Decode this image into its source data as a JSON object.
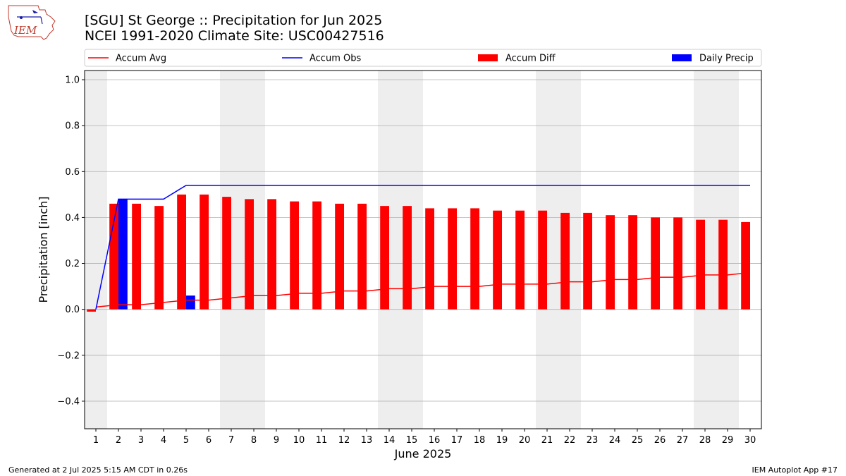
{
  "logo": {
    "text": "IEM"
  },
  "header": {
    "title": "[SGU] St George :: Precipitation for Jun 2025",
    "subtitle": "NCEI 1991-2020 Climate Site: USC00427516"
  },
  "footer": {
    "generated": "Generated at 2 Jul 2025 5:15 AM CDT in 0.26s",
    "app": "IEM Autoplot App #17"
  },
  "colors": {
    "avg": "#ff0000",
    "obs": "#0000ff",
    "diff": "#ff0000",
    "daily": "#0000ff",
    "weekend_shade": "#eeeeee",
    "grid": "#b0b0b0"
  },
  "chart_data": {
    "type": "bar",
    "xlabel": "June 2025",
    "ylabel": "Precipitation [inch]",
    "ylim": [
      -0.52,
      1.04
    ],
    "yticks": [
      -0.4,
      -0.2,
      0.0,
      0.2,
      0.4,
      0.6,
      0.8,
      1.0
    ],
    "ytick_labels": [
      "−0.4",
      "−0.2",
      "0.0",
      "0.2",
      "0.4",
      "0.6",
      "0.8",
      "1.0"
    ],
    "grid": "horizontal",
    "legend_placement": "top",
    "legend": [
      "Accum Avg",
      "Accum Obs",
      "Accum Diff",
      "Daily Precip"
    ],
    "days": [
      1,
      2,
      3,
      4,
      5,
      6,
      7,
      8,
      9,
      10,
      11,
      12,
      13,
      14,
      15,
      16,
      17,
      18,
      19,
      20,
      21,
      22,
      23,
      24,
      25,
      26,
      27,
      28,
      29,
      30
    ],
    "weekend_days": [
      1,
      7,
      8,
      14,
      15,
      21,
      22,
      28,
      29
    ],
    "series": [
      {
        "name": "Accum Avg",
        "kind": "line",
        "values": [
          0.01,
          0.02,
          0.02,
          0.03,
          0.04,
          0.04,
          0.05,
          0.06,
          0.06,
          0.07,
          0.07,
          0.08,
          0.08,
          0.09,
          0.09,
          0.1,
          0.1,
          0.1,
          0.11,
          0.11,
          0.11,
          0.12,
          0.12,
          0.13,
          0.13,
          0.14,
          0.14,
          0.15,
          0.15,
          0.16
        ]
      },
      {
        "name": "Accum Obs",
        "kind": "line",
        "values": [
          0.0,
          0.48,
          0.48,
          0.48,
          0.54,
          0.54,
          0.54,
          0.54,
          0.54,
          0.54,
          0.54,
          0.54,
          0.54,
          0.54,
          0.54,
          0.54,
          0.54,
          0.54,
          0.54,
          0.54,
          0.54,
          0.54,
          0.54,
          0.54,
          0.54,
          0.54,
          0.54,
          0.54,
          0.54,
          0.54
        ]
      },
      {
        "name": "Accum Diff",
        "kind": "bar",
        "values": [
          -0.01,
          0.46,
          0.46,
          0.45,
          0.5,
          0.5,
          0.49,
          0.48,
          0.48,
          0.47,
          0.47,
          0.46,
          0.46,
          0.45,
          0.45,
          0.44,
          0.44,
          0.44,
          0.43,
          0.43,
          0.43,
          0.42,
          0.42,
          0.41,
          0.41,
          0.4,
          0.4,
          0.39,
          0.39,
          0.38
        ]
      },
      {
        "name": "Daily Precip",
        "kind": "bar",
        "values": [
          0,
          0.48,
          0,
          0,
          0.06,
          0,
          0,
          0,
          0,
          0,
          0,
          0,
          0,
          0,
          0,
          0,
          0,
          0,
          0,
          0,
          0,
          0,
          0,
          0,
          0,
          0,
          0,
          0,
          0,
          0
        ]
      }
    ]
  }
}
